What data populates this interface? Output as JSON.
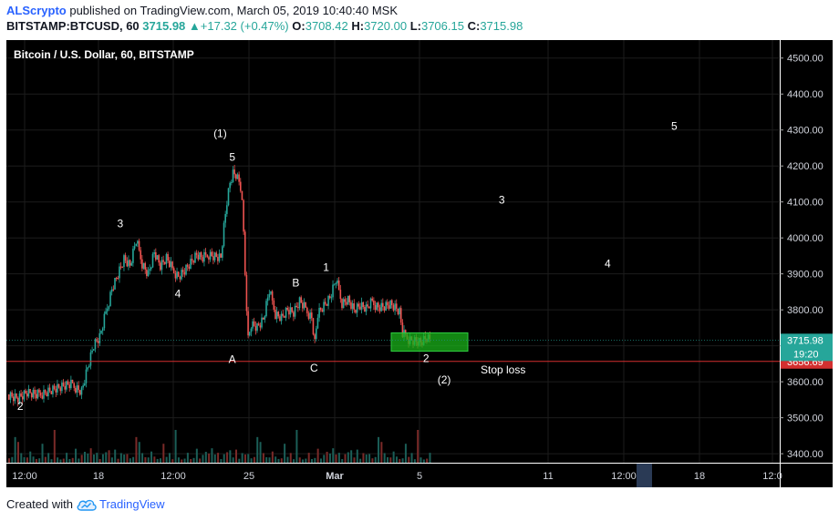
{
  "header": {
    "author": "ALScrypto",
    "published_text": " published on TradingView.com, March 05, 2019 10:40:40 MSK",
    "symbol": "BITSTAMP:BTCUSD, 60",
    "last": "3715.98",
    "change": "+17.32 (+0.47%)",
    "o_label": "O:",
    "o_value": "3708.42",
    "h_label": "H:",
    "h_value": "3720.00",
    "l_label": "L:",
    "l_value": "3706.15",
    "c_label": "C:",
    "c_value": "3715.98"
  },
  "footer": {
    "created_with": "Created with",
    "brand": "TradingView"
  },
  "colors": {
    "up": "#26a69a",
    "down": "#ef5350",
    "bg": "#000000",
    "grid": "#1c1c1c",
    "stop": "#d32f2f",
    "box": "#19b319"
  },
  "chart_data": {
    "type": "candlestick",
    "title": "Bitcoin / U.S. Dollar, 60, BITSTAMP",
    "ylim": [
      3375,
      4550
    ],
    "y_ticks": [
      "4500.00",
      "4400.00",
      "4300.00",
      "4200.00",
      "4100.00",
      "4000.00",
      "3900.00",
      "3800.00",
      "3700.00",
      "3600.00",
      "3500.00",
      "3400.00"
    ],
    "x_ticks": [
      "12:00",
      "18",
      "12:00",
      "25",
      "Mar",
      "5",
      "11",
      "12:00",
      "18",
      "12:0"
    ],
    "x_tick_bold": [
      "Mar"
    ],
    "price_path": [
      [
        0,
        3565
      ],
      [
        3,
        3555
      ],
      [
        6,
        3568
      ],
      [
        9,
        3560
      ],
      [
        12,
        3572
      ],
      [
        15,
        3580
      ],
      [
        18,
        3585
      ],
      [
        21,
        3590
      ],
      [
        24,
        3575
      ],
      [
        26,
        3640
      ],
      [
        28,
        3700
      ],
      [
        30,
        3720
      ],
      [
        32,
        3790
      ],
      [
        34,
        3860
      ],
      [
        36,
        3900
      ],
      [
        38,
        3940
      ],
      [
        40,
        3920
      ],
      [
        42,
        3990
      ],
      [
        44,
        3930
      ],
      [
        46,
        3900
      ],
      [
        48,
        3960
      ],
      [
        50,
        3920
      ],
      [
        52,
        3940
      ],
      [
        54,
        3910
      ],
      [
        56,
        3895
      ],
      [
        58,
        3910
      ],
      [
        60,
        3930
      ],
      [
        62,
        3950
      ],
      [
        64,
        3940
      ],
      [
        66,
        3955
      ],
      [
        68,
        3950
      ],
      [
        70,
        3945
      ],
      [
        71,
        4030
      ],
      [
        72,
        4100
      ],
      [
        73,
        4150
      ],
      [
        74,
        4175
      ],
      [
        75,
        4170
      ],
      [
        76,
        4150
      ],
      [
        77,
        4120
      ],
      [
        78,
        3900
      ],
      [
        79,
        3720
      ],
      [
        80,
        3760
      ],
      [
        82,
        3750
      ],
      [
        84,
        3770
      ],
      [
        86,
        3850
      ],
      [
        88,
        3790
      ],
      [
        90,
        3780
      ],
      [
        92,
        3800
      ],
      [
        94,
        3790
      ],
      [
        96,
        3820
      ],
      [
        98,
        3800
      ],
      [
        100,
        3780
      ],
      [
        101,
        3710
      ],
      [
        102,
        3790
      ],
      [
        104,
        3810
      ],
      [
        106,
        3830
      ],
      [
        108,
        3880
      ],
      [
        110,
        3820
      ],
      [
        112,
        3830
      ],
      [
        114,
        3800
      ],
      [
        116,
        3810
      ],
      [
        118,
        3800
      ],
      [
        120,
        3820
      ],
      [
        122,
        3810
      ],
      [
        124,
        3810
      ],
      [
        126,
        3815
      ],
      [
        128,
        3800
      ],
      [
        129,
        3790
      ],
      [
        130,
        3730
      ],
      [
        132,
        3720
      ],
      [
        134,
        3715
      ],
      [
        136,
        3710
      ],
      [
        138,
        3720
      ],
      [
        139,
        3716
      ]
    ],
    "volume_peaks": [
      6,
      3,
      4,
      8,
      5,
      12,
      4,
      6,
      9,
      14,
      5,
      7,
      3,
      8,
      22,
      10,
      6,
      9,
      4,
      12,
      5,
      15,
      7,
      3,
      9,
      30,
      8,
      5,
      11,
      18,
      6,
      9,
      4,
      7,
      12,
      5,
      8,
      20,
      6,
      4
    ],
    "last_price": "3715.98",
    "last_price_value": 3715.98,
    "countdown": "19:20",
    "stop_loss": {
      "label": "Stop loss",
      "price": "3656.69",
      "value": 3656.69
    },
    "target_box": {
      "from": 3685,
      "to": 3736
    },
    "annotations": [
      {
        "text": "(1)",
        "x": 70,
        "y": 4280
      },
      {
        "text": "5",
        "x": 74,
        "y": 4215
      },
      {
        "text": "3",
        "x": 37,
        "y": 4030
      },
      {
        "text": "4",
        "x": 56,
        "y": 3835
      },
      {
        "text": "2",
        "x": 4,
        "y": 3522
      },
      {
        "text": "A",
        "x": 74,
        "y": 3652
      },
      {
        "text": "B",
        "x": 95,
        "y": 3865
      },
      {
        "text": "1",
        "x": 105,
        "y": 3908
      },
      {
        "text": "C",
        "x": 101,
        "y": 3628
      },
      {
        "text": "2",
        "x": 138,
        "y": 3655
      },
      {
        "text": "(2)",
        "x": 144,
        "y": 3595
      },
      {
        "text": "3",
        "x": 163,
        "y": 4095
      },
      {
        "text": "4",
        "x": 198,
        "y": 3918
      },
      {
        "text": "5",
        "x": 220,
        "y": 4300
      }
    ]
  }
}
